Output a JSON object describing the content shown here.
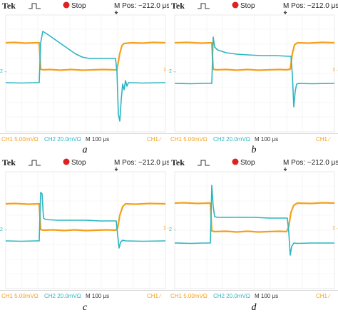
{
  "screens": [
    {
      "id": "a",
      "caption": "a",
      "brand": "Tek",
      "trigger_icon": "rising-edge-pulse-icon",
      "status": "Stop",
      "mpos": "M Pos: −212.0 μs",
      "ch1": "CH1  5.00mVΩ",
      "ch2": "CH2  20.0mVΩ",
      "timebase": "M 100 μs",
      "trigger_readout": "CH1 ∕",
      "ch2_marker": "2→",
      "ch1_marker": "1→",
      "ch1_color": "#f5a01a",
      "ch2_color": "#2cb5c0"
    },
    {
      "id": "b",
      "caption": "b",
      "brand": "Tek",
      "trigger_icon": "rising-edge-pulse-icon",
      "status": "Stop",
      "mpos": "M Pos: −212.0 μs",
      "ch1": "CH1  5.00mVΩ",
      "ch2": "CH2  20.0mVΩ",
      "timebase": "M 100 μs",
      "trigger_readout": "CH1 ∕",
      "ch2_marker": "2→",
      "ch1_marker": "1→",
      "ch1_color": "#f5a01a",
      "ch2_color": "#2cb5c0"
    },
    {
      "id": "c",
      "caption": "c",
      "brand": "Tek",
      "trigger_icon": "rising-edge-pulse-icon",
      "status": "Stop",
      "mpos": "M Pos: −212.0 μs",
      "ch1": "CH1  5.00mVΩ",
      "ch2": "CH2  20.0mVΩ",
      "timebase": "M 100 μs",
      "trigger_readout": "CH1 ∕",
      "ch2_marker": "2→",
      "ch1_marker": "1→",
      "ch1_color": "#f5a01a",
      "ch2_color": "#2cb5c0"
    },
    {
      "id": "d",
      "caption": "d",
      "brand": "Tek",
      "trigger_icon": "rising-edge-pulse-icon",
      "status": "Stop",
      "mpos": "M Pos: −212.0 μs",
      "ch1": "CH1  5.00mVΩ",
      "ch2": "CH2  20.0mVΩ",
      "timebase": "M 100 μs",
      "trigger_readout": "CH1 ∕",
      "ch2_marker": "2→",
      "ch1_marker": "1→",
      "ch1_color": "#f5a01a",
      "ch2_color": "#2cb5c0"
    }
  ]
}
